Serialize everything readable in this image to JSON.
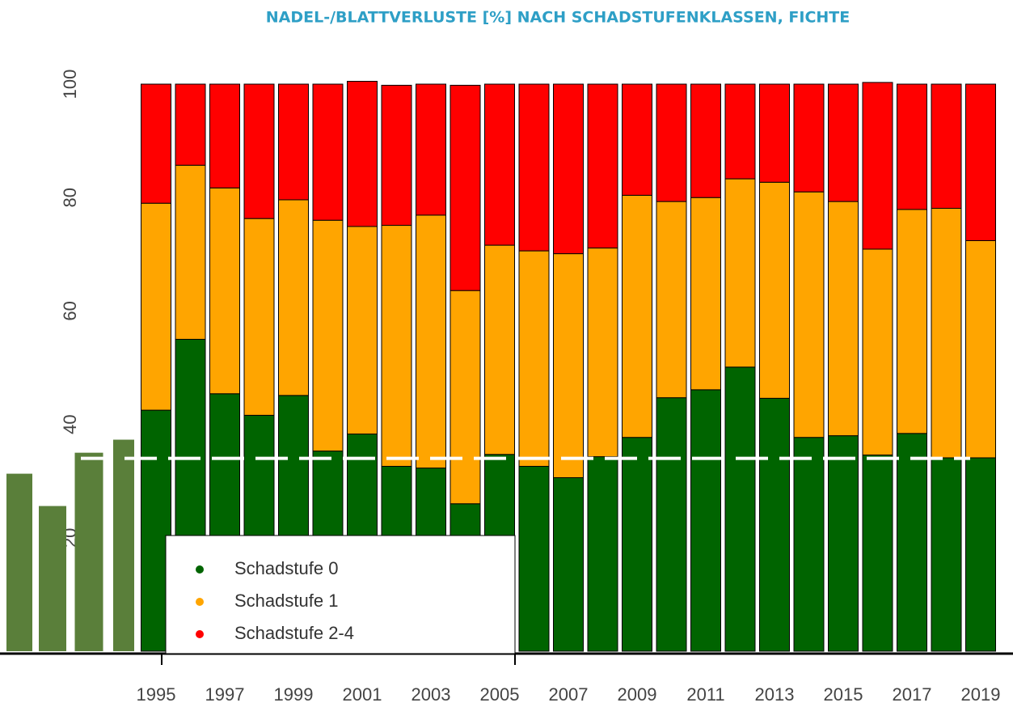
{
  "chart_data": {
    "type": "stacked_bar",
    "title": "NADEL-/BLATTVERLUSTE [%] NACH SCHADSTUFENKLASSEN, FICHTE",
    "categories": [
      "1995",
      null,
      "1997",
      null,
      "1999",
      null,
      "2001",
      null,
      "2003",
      null,
      "2005",
      null,
      "2007",
      null,
      "2009",
      null,
      "2011",
      null,
      "2013",
      null,
      "2015",
      null,
      "2017",
      null,
      "2019"
    ],
    "series": [
      {
        "name": "Schadstufe 0",
        "color": "#006400",
        "values": [
          42.5,
          55,
          45.4,
          41.6,
          45.1,
          35.3,
          38.3,
          32.6,
          32.3,
          26,
          34.7,
          32.6,
          30.6,
          34.3,
          37.7,
          44.7,
          46.1,
          50.1,
          44.6,
          37.7,
          38,
          34.6,
          38.4,
          34.1,
          34.1
        ]
      },
      {
        "name": "Schadstufe 1",
        "color": "#ffa500",
        "values": [
          36.5,
          30.7,
          36.3,
          34.7,
          34.5,
          40.7,
          36.6,
          42.5,
          44.6,
          37.6,
          36.9,
          38,
          39.5,
          36.8,
          42.7,
          34.6,
          33.9,
          33.2,
          38.1,
          43.3,
          41.3,
          36.3,
          39.5,
          44,
          38.3
        ]
      },
      {
        "name": "Schadstufe 2-4",
        "color": "#ff0000",
        "values": [
          21,
          14.3,
          18.3,
          23.7,
          20.4,
          24,
          25.6,
          24.7,
          23.1,
          36.2,
          28.4,
          29.4,
          29.9,
          28.9,
          19.6,
          20.7,
          20,
          16.7,
          17.3,
          19,
          20.7,
          29.4,
          22.1,
          21.9,
          27.6
        ]
      }
    ],
    "ylim": [
      0,
      100
    ],
    "yticks": [
      20,
      40,
      60,
      80,
      100
    ],
    "overlay_bars": {
      "color": "#5a7f3a",
      "values": [
        31.3,
        25.6,
        35,
        37.3
      ]
    },
    "reference_line": {
      "value": 34,
      "color": "#ffffff",
      "dashed": true
    }
  }
}
